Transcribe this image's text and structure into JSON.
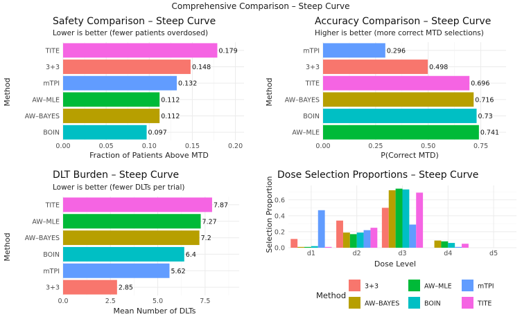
{
  "figure_title": "Comprehensive Comparison – Steep Curve",
  "colors": {
    "3+3": "#F8766D",
    "AW-BAYES": "#B79F00",
    "AW-MLE": "#00BA38",
    "BOIN": "#00BFC4",
    "mTPI": "#619CFF",
    "TITE": "#F564E3"
  },
  "chart_data": [
    {
      "id": "safety",
      "type": "bar",
      "orientation": "horizontal",
      "title": "Safety Comparison – Steep Curve",
      "subtitle": "Lower is better (fewer patients overdosed)",
      "xlabel": "Fraction of Patients Above MTD",
      "ylabel": "Method",
      "categories": [
        "TITE",
        "3+3",
        "mTPI",
        "AW–MLE",
        "AW–BAYES",
        "BOIN"
      ],
      "color_keys": [
        "TITE",
        "3+3",
        "mTPI",
        "AW-MLE",
        "AW-BAYES",
        "BOIN"
      ],
      "values": [
        0.179,
        0.148,
        0.132,
        0.112,
        0.112,
        0.097
      ],
      "labels": [
        "0.179",
        "0.148",
        "0.132",
        "0.112",
        "0.112",
        "0.097"
      ],
      "xlim": [
        0,
        0.21
      ],
      "xticks": [
        0,
        0.05,
        0.1,
        0.15,
        0.2
      ],
      "xtick_labels": [
        "0.00",
        "0.05",
        "0.10",
        "0.15",
        "0.20"
      ]
    },
    {
      "id": "accuracy",
      "type": "bar",
      "orientation": "horizontal",
      "title": "Accuracy Comparison – Steep Curve",
      "subtitle": "Higher is better (more correct MTD selections)",
      "xlabel": "P(Correct MTD)",
      "ylabel": "Method",
      "categories": [
        "mTPI",
        "3+3",
        "TITE",
        "AW–BAYES",
        "BOIN",
        "AW–MLE"
      ],
      "color_keys": [
        "mTPI",
        "3+3",
        "TITE",
        "AW-BAYES",
        "BOIN",
        "AW-MLE"
      ],
      "values": [
        0.296,
        0.498,
        0.696,
        0.716,
        0.73,
        0.741
      ],
      "labels": [
        "0.296",
        "0.498",
        "0.696",
        "0.716",
        "0.73",
        "0.741"
      ],
      "xlim": [
        0,
        0.87
      ],
      "xticks": [
        0,
        0.25,
        0.5,
        0.75
      ],
      "xtick_labels": [
        "0.00",
        "0.25",
        "0.50",
        "0.75"
      ]
    },
    {
      "id": "dlt",
      "type": "bar",
      "orientation": "horizontal",
      "title": "DLT Burden – Steep Curve",
      "subtitle": "Lower is better (fewer DLTs per trial)",
      "xlabel": "Mean Number of DLTs",
      "ylabel": "Method",
      "categories": [
        "TITE",
        "AW–MLE",
        "AW–BAYES",
        "BOIN",
        "mTPI",
        "3+3"
      ],
      "color_keys": [
        "TITE",
        "AW-MLE",
        "AW-BAYES",
        "BOIN",
        "mTPI",
        "3+3"
      ],
      "values": [
        7.87,
        7.27,
        7.2,
        6.4,
        5.62,
        2.85
      ],
      "labels": [
        "7.87",
        "7.27",
        "7.2",
        "6.4",
        "5.62",
        "2.85"
      ],
      "xlim": [
        0,
        9.3
      ],
      "xticks": [
        0,
        2.5,
        5,
        7.5
      ],
      "xtick_labels": [
        "0.0",
        "2.5",
        "5.0",
        "7.5"
      ]
    },
    {
      "id": "dose",
      "type": "bar",
      "orientation": "vertical",
      "title": "Dose Selection Proportions – Steep Curve",
      "xlabel": "Dose Level",
      "ylabel": "Selection Proportion",
      "categories": [
        "d1",
        "d2",
        "d3",
        "d4",
        "d5"
      ],
      "ylim": [
        0,
        0.78
      ],
      "yticks": [
        0,
        0.2,
        0.4,
        0.6
      ],
      "ytick_labels": [
        "0.0",
        "0.2",
        "0.4",
        "0.6"
      ],
      "series": [
        {
          "name": "3+3",
          "values": [
            0.11,
            0.34,
            0.5,
            0.0,
            0.0
          ]
        },
        {
          "name": "AW-BAYES",
          "values": [
            0.01,
            0.19,
            0.72,
            0.09,
            0.0
          ]
        },
        {
          "name": "AW-MLE",
          "values": [
            0.01,
            0.17,
            0.74,
            0.08,
            0.0
          ]
        },
        {
          "name": "BOIN",
          "values": [
            0.02,
            0.19,
            0.73,
            0.06,
            0.0
          ]
        },
        {
          "name": "mTPI",
          "values": [
            0.47,
            0.22,
            0.29,
            0.01,
            0.0
          ]
        },
        {
          "name": "TITE",
          "values": [
            0.01,
            0.25,
            0.69,
            0.05,
            0.0
          ]
        }
      ]
    }
  ],
  "legend": {
    "title": "Method",
    "items": [
      {
        "label": "3+3",
        "key": "3+3"
      },
      {
        "label": "AW–MLE",
        "key": "AW-MLE"
      },
      {
        "label": "mTPI",
        "key": "mTPI"
      },
      {
        "label": "AW–BAYES",
        "key": "AW-BAYES"
      },
      {
        "label": "BOIN",
        "key": "BOIN"
      },
      {
        "label": "TITE",
        "key": "TITE"
      }
    ]
  }
}
